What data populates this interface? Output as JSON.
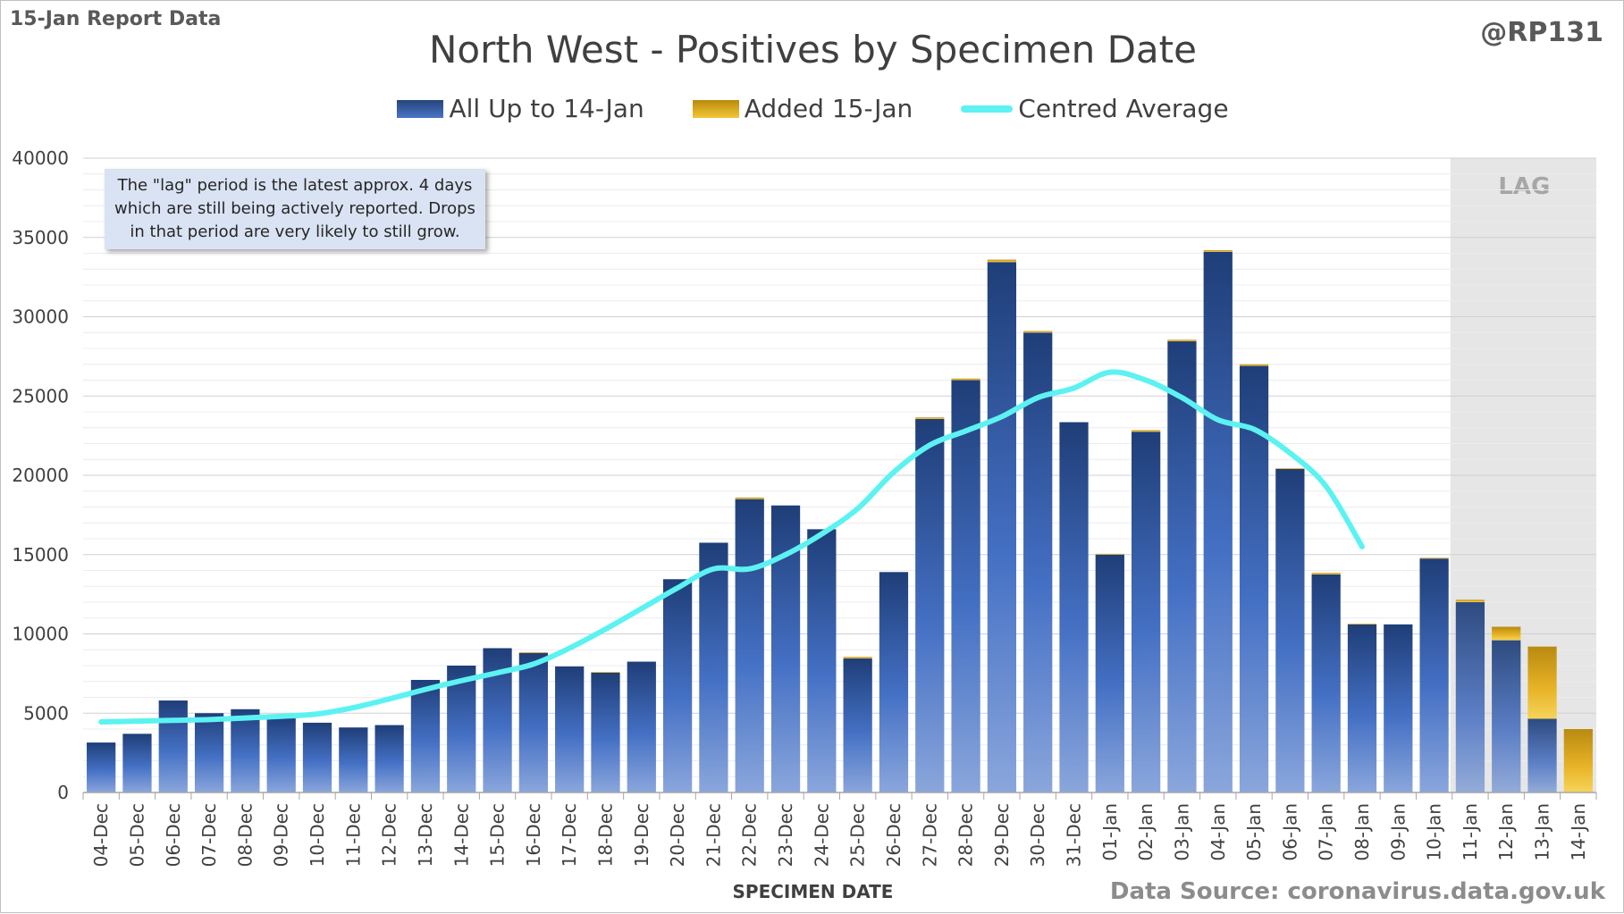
{
  "header": {
    "report_tag": "15-Jan Report Data",
    "handle": "@RP131"
  },
  "colors": {
    "all_up_to": "#3a5fa8",
    "added": "#e8b428",
    "average": "#5cf2f2",
    "lag_band": "#e6e6e6"
  },
  "note": "The \"lag\" period is the latest approx. 4 days which are still being actively reported. Drops in that period are very likely to still grow.",
  "lag_label": "LAG",
  "source": "Data Source: coronavirus.data.gov.uk",
  "chart_data": {
    "type": "bar",
    "stacked": true,
    "title": "North West - Positives by Specimen Date",
    "xlabel": "SPECIMEN DATE",
    "ylabel": "",
    "ylim": [
      0,
      40000
    ],
    "yticks": [
      0,
      5000,
      10000,
      15000,
      20000,
      25000,
      30000,
      35000,
      40000
    ],
    "grid": true,
    "legend_position": "top",
    "lag_range": [
      "11-Jan",
      "14-Jan"
    ],
    "categories": [
      "04-Dec",
      "05-Dec",
      "06-Dec",
      "07-Dec",
      "08-Dec",
      "09-Dec",
      "10-Dec",
      "11-Dec",
      "12-Dec",
      "13-Dec",
      "14-Dec",
      "15-Dec",
      "16-Dec",
      "17-Dec",
      "18-Dec",
      "19-Dec",
      "20-Dec",
      "21-Dec",
      "22-Dec",
      "23-Dec",
      "24-Dec",
      "25-Dec",
      "26-Dec",
      "27-Dec",
      "28-Dec",
      "29-Dec",
      "30-Dec",
      "31-Dec",
      "01-Jan",
      "02-Jan",
      "03-Jan",
      "04-Jan",
      "05-Jan",
      "06-Jan",
      "07-Jan",
      "08-Jan",
      "09-Jan",
      "10-Jan",
      "11-Jan",
      "12-Jan",
      "13-Jan",
      "14-Jan"
    ],
    "series": [
      {
        "name": "All Up to 14-Jan",
        "type": "bar",
        "values": [
          3150,
          3700,
          5800,
          5000,
          5250,
          4800,
          4400,
          4100,
          4250,
          7100,
          8000,
          9100,
          8800,
          7950,
          7550,
          8250,
          13450,
          15750,
          18500,
          18100,
          16600,
          8450,
          13900,
          23550,
          26000,
          33450,
          29000,
          23350,
          15000,
          22750,
          28450,
          34100,
          26900,
          20400,
          13750,
          10600,
          10600,
          14750,
          12000,
          9600,
          4650,
          0
        ]
      },
      {
        "name": "Added 15-Jan",
        "type": "bar",
        "values": [
          0,
          0,
          0,
          0,
          0,
          0,
          0,
          0,
          0,
          0,
          0,
          0,
          50,
          0,
          50,
          0,
          0,
          0,
          100,
          0,
          0,
          100,
          0,
          100,
          100,
          150,
          100,
          0,
          50,
          100,
          100,
          100,
          100,
          50,
          100,
          50,
          0,
          50,
          150,
          850,
          4550,
          4000
        ]
      },
      {
        "name": "Centred Average",
        "type": "line",
        "values": [
          4450,
          4500,
          4550,
          4600,
          4700,
          4800,
          4950,
          5350,
          5900,
          6500,
          7050,
          7550,
          8100,
          9100,
          10300,
          11600,
          12900,
          14100,
          14100,
          15000,
          16300,
          17900,
          20200,
          21900,
          22800,
          23700,
          24900,
          25500,
          26500,
          26000,
          24900,
          23500,
          22900,
          21400,
          19300,
          15500,
          null,
          null,
          null,
          null,
          null,
          null
        ]
      }
    ]
  }
}
